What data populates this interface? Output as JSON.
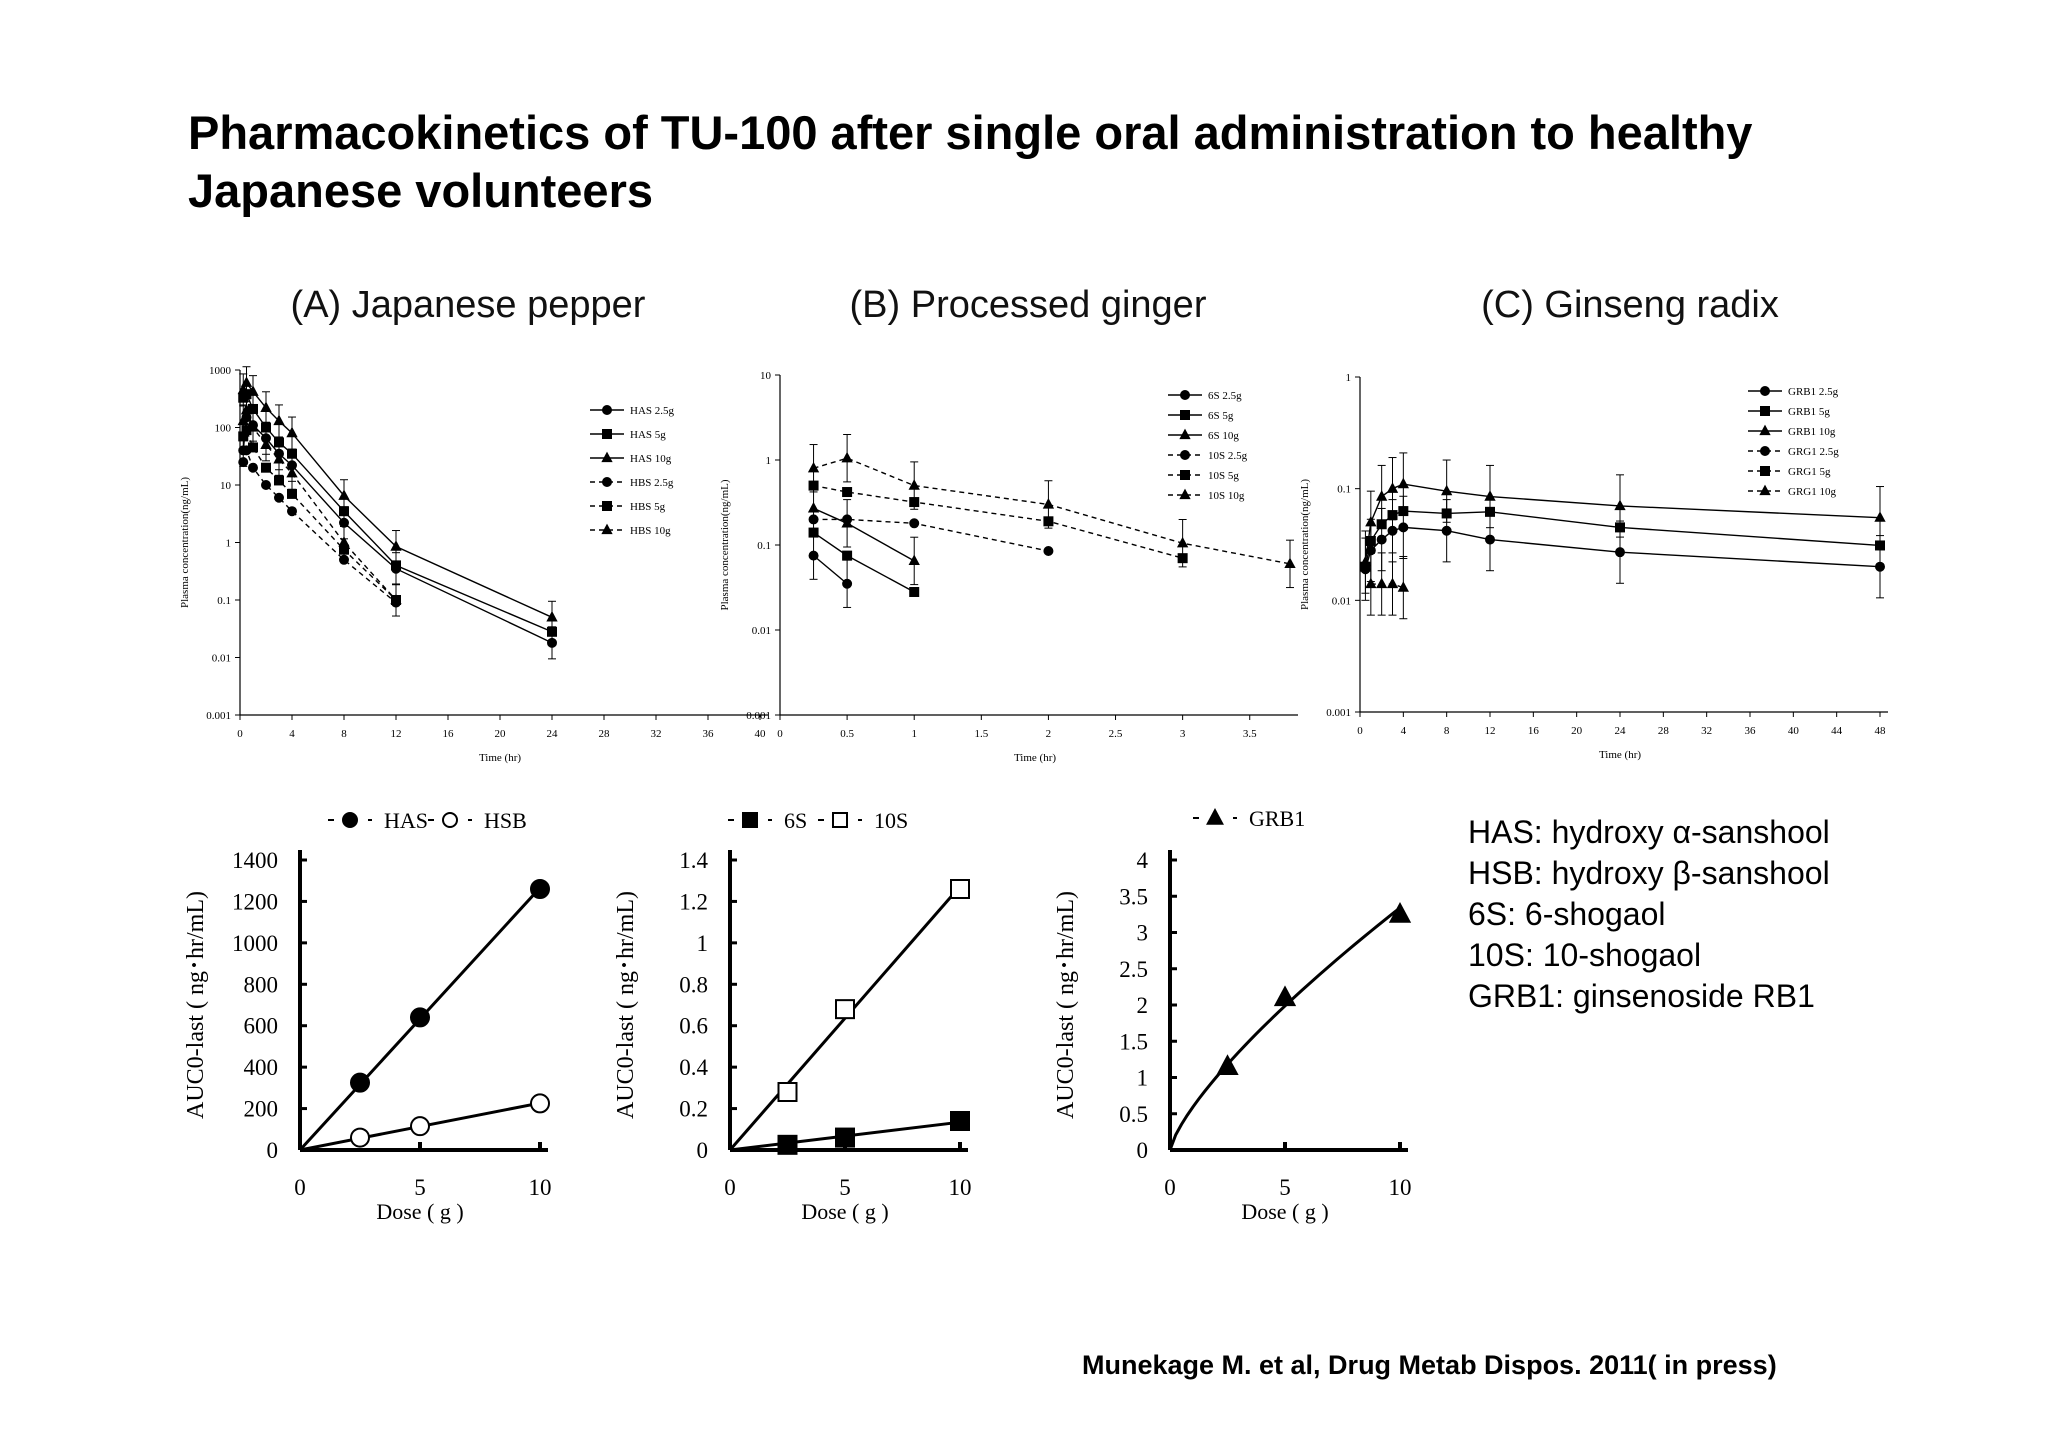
{
  "title": "Pharmacokinetics of TU-100 after single oral administration to healthy Japanese volunteers",
  "panels": {
    "a": "(A) Japanese pepper",
    "b": "(B) Processed ginger",
    "c": "(C) Ginseng radix"
  },
  "abbreviations": [
    "HAS: hydroxy α-sanshool",
    "HSB: hydroxy β-sanshool",
    "6S: 6-shogaol",
    "10S: 10-shogaol",
    "GRB1: ginsenoside RB1"
  ],
  "citation": "Munekage M. et al, Drug Metab Dispos. 2011( in press)",
  "chart_data": [
    {
      "id": "pk_a",
      "type": "line",
      "yscale": "log",
      "xlabel": "Time (hr)",
      "ylabel": "Plasma concentration(ng/mL)",
      "xlim": [
        0,
        40
      ],
      "ylim": [
        0.001,
        1000
      ],
      "xticks": [
        0,
        4,
        8,
        12,
        16,
        20,
        24,
        28,
        32,
        36,
        40
      ],
      "yticks": [
        0.001,
        0.01,
        0.1,
        1,
        10,
        100,
        1000
      ],
      "ytick_labels": [
        "0.001",
        "0.01",
        "0.1",
        "1",
        "10",
        "100",
        "1000"
      ],
      "legend_position": "top-right",
      "series": [
        {
          "name": "HAS 2.5g",
          "marker": "circle",
          "dash": false,
          "x": [
            0.25,
            0.5,
            1,
            2,
            3,
            4,
            8,
            12,
            24
          ],
          "y": [
            40,
            150,
            110,
            65,
            35,
            22,
            2.2,
            0.35,
            0.018
          ]
        },
        {
          "name": "HAS 5g",
          "marker": "square",
          "dash": false,
          "x": [
            0.25,
            0.5,
            1,
            2,
            3,
            4,
            8,
            12,
            24
          ],
          "y": [
            330,
            380,
            210,
            100,
            55,
            35,
            3.5,
            0.4,
            0.028
          ]
        },
        {
          "name": "HAS 10g",
          "marker": "triangle",
          "dash": false,
          "x": [
            0.25,
            0.5,
            1,
            2,
            3,
            4,
            8,
            12,
            24
          ],
          "y": [
            450,
            600,
            420,
            220,
            130,
            80,
            6.5,
            0.85,
            0.05
          ]
        },
        {
          "name": "HBS 2.5g",
          "marker": "circle",
          "dash": true,
          "x": [
            0.25,
            0.5,
            1,
            2,
            3,
            4,
            8,
            12
          ],
          "y": [
            25,
            40,
            20,
            10,
            6,
            3.5,
            0.5,
            0.09
          ]
        },
        {
          "name": "HBS 5g",
          "marker": "square",
          "dash": true,
          "x": [
            0.25,
            0.5,
            1,
            2,
            3,
            4,
            8,
            12
          ],
          "y": [
            70,
            90,
            45,
            20,
            12,
            7,
            0.75,
            0.1
          ]
        },
        {
          "name": "HBS 10g",
          "marker": "triangle",
          "dash": true,
          "x": [
            0.25,
            0.5,
            1,
            2,
            3,
            4,
            8,
            12
          ],
          "y": [
            130,
            200,
            100,
            50,
            28,
            16,
            1,
            0.1
          ]
        }
      ]
    },
    {
      "id": "pk_b",
      "type": "line",
      "yscale": "log",
      "xlabel": "Time (hr)",
      "ylabel": "Plasma concentration(ng/mL)",
      "xlim": [
        0,
        3.8
      ],
      "ylim": [
        0.001,
        10
      ],
      "xticks": [
        0,
        0.5,
        1,
        1.5,
        2,
        2.5,
        3,
        3.5
      ],
      "yticks": [
        0.001,
        0.01,
        0.1,
        1,
        10
      ],
      "ytick_labels": [
        "0.001",
        "0.01",
        "0.1",
        "1",
        "10"
      ],
      "legend_position": "top-right",
      "series": [
        {
          "name": "6S 2.5g",
          "marker": "circle",
          "dash": false,
          "x": [
            0.25,
            0.5
          ],
          "y": [
            0.075,
            0.035
          ]
        },
        {
          "name": "6S 5g",
          "marker": "square",
          "dash": false,
          "x": [
            0.25,
            0.5,
            1
          ],
          "y": [
            0.14,
            0.075,
            0.028
          ]
        },
        {
          "name": "6S 10g",
          "marker": "triangle",
          "dash": false,
          "x": [
            0.25,
            0.5,
            1
          ],
          "y": [
            0.27,
            0.18,
            0.065
          ]
        },
        {
          "name": "10S 2.5g",
          "marker": "circle",
          "dash": true,
          "x": [
            0.25,
            0.5,
            1,
            2
          ],
          "y": [
            0.2,
            0.2,
            0.18,
            0.085
          ]
        },
        {
          "name": "10S 5g",
          "marker": "square",
          "dash": true,
          "x": [
            0.25,
            0.5,
            1,
            2,
            3
          ],
          "y": [
            0.5,
            0.42,
            0.32,
            0.19,
            0.07
          ]
        },
        {
          "name": "10S 10g",
          "marker": "triangle",
          "dash": true,
          "x": [
            0.25,
            0.5,
            1,
            2,
            3,
            3.8
          ],
          "y": [
            0.8,
            1.05,
            0.5,
            0.3,
            0.105,
            0.06
          ]
        }
      ]
    },
    {
      "id": "pk_c",
      "type": "line",
      "yscale": "log",
      "xlabel": "Time (hr)",
      "ylabel": "Plasma concentration(ng/mL)",
      "xlim": [
        0,
        48
      ],
      "ylim": [
        0.001,
        1
      ],
      "xticks": [
        0,
        4,
        8,
        12,
        16,
        20,
        24,
        28,
        32,
        36,
        40,
        44,
        48
      ],
      "yticks": [
        0.001,
        0.01,
        0.1,
        1
      ],
      "ytick_labels": [
        "0.001",
        "0.01",
        "0.1",
        "1"
      ],
      "legend_position": "top-right",
      "series": [
        {
          "name": "GRB1 2.5g",
          "marker": "circle",
          "dash": false,
          "x": [
            0.5,
            1,
            2,
            3,
            4,
            8,
            12,
            24,
            48
          ],
          "y": [
            0.019,
            0.028,
            0.035,
            0.042,
            0.045,
            0.042,
            0.035,
            0.027,
            0.02
          ]
        },
        {
          "name": "GRB1 5g",
          "marker": "square",
          "dash": false,
          "x": [
            0.5,
            1,
            2,
            3,
            4,
            8,
            12,
            24,
            48
          ],
          "y": [
            0.02,
            0.034,
            0.048,
            0.058,
            0.063,
            0.06,
            0.062,
            0.045,
            0.031
          ]
        },
        {
          "name": "GRB1 10g",
          "marker": "triangle",
          "dash": false,
          "x": [
            0.5,
            1,
            2,
            3,
            4,
            8,
            12,
            24,
            48
          ],
          "y": [
            0.022,
            0.05,
            0.085,
            0.1,
            0.11,
            0.095,
            0.085,
            0.07,
            0.055
          ]
        },
        {
          "name": "GRG1 2.5g",
          "marker": "circle",
          "dash": true,
          "x": [],
          "y": []
        },
        {
          "name": "GRG1 5g",
          "marker": "square",
          "dash": true,
          "x": [],
          "y": []
        },
        {
          "name": "GRG1 10g",
          "marker": "triangle",
          "dash": true,
          "x": [
            1,
            2,
            3,
            4
          ],
          "y": [
            0.014,
            0.014,
            0.014,
            0.013
          ]
        }
      ]
    },
    {
      "id": "auc_a",
      "type": "scatter",
      "xlabel": "Dose ( g )",
      "ylabel": "AUC0-last ( ng･hr/mL)",
      "xlim": [
        0,
        10
      ],
      "ylim": [
        0,
        1400
      ],
      "xticks": [
        0,
        5,
        10
      ],
      "yticks": [
        0,
        200,
        400,
        600,
        800,
        1000,
        1200,
        1400
      ],
      "legend_position": "top",
      "series": [
        {
          "name": "HAS",
          "marker": "filled-circle",
          "fit": "linear",
          "x": [
            2.5,
            5,
            10
          ],
          "y": [
            325,
            640,
            1260
          ]
        },
        {
          "name": "HSB",
          "marker": "open-circle",
          "fit": "linear",
          "x": [
            2.5,
            5,
            10
          ],
          "y": [
            60,
            115,
            225
          ]
        }
      ]
    },
    {
      "id": "auc_b",
      "type": "scatter",
      "xlabel": "Dose ( g )",
      "ylabel": "AUC0-last ( ng･hr/mL)",
      "xlim": [
        0,
        10
      ],
      "ylim": [
        0,
        1.4
      ],
      "xticks": [
        0,
        5,
        10
      ],
      "yticks": [
        0,
        0.2,
        0.4,
        0.6,
        0.8,
        1,
        1.2,
        1.4
      ],
      "legend_position": "top",
      "series": [
        {
          "name": "6S",
          "marker": "filled-square",
          "fit": "linear",
          "x": [
            2.5,
            5,
            10
          ],
          "y": [
            0.025,
            0.06,
            0.14
          ]
        },
        {
          "name": "10S",
          "marker": "open-square",
          "fit": "linear",
          "x": [
            2.5,
            5,
            10
          ],
          "y": [
            0.28,
            0.68,
            1.26
          ]
        }
      ]
    },
    {
      "id": "auc_c",
      "type": "scatter",
      "xlabel": "Dose ( g )",
      "ylabel": "AUC0-last ( ng･hr/mL)",
      "xlim": [
        0,
        10
      ],
      "ylim": [
        0,
        4
      ],
      "xticks": [
        0,
        5,
        10
      ],
      "yticks": [
        0,
        0.5,
        1,
        1.5,
        2,
        2.5,
        3,
        3.5,
        4
      ],
      "legend_position": "top",
      "series": [
        {
          "name": "GRB1",
          "marker": "filled-triangle",
          "fit": "power",
          "x": [
            2.5,
            5,
            10
          ],
          "y": [
            1.15,
            2.1,
            3.25
          ]
        }
      ]
    }
  ]
}
